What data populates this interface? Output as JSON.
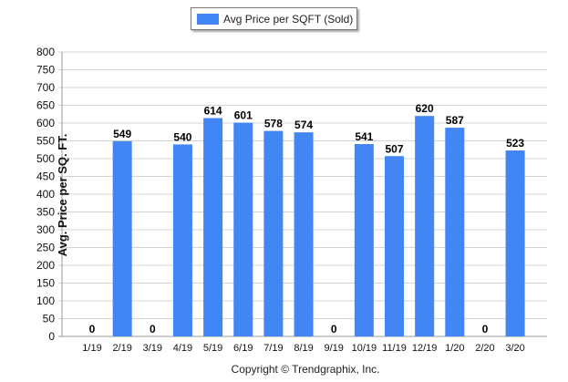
{
  "legend": {
    "label": "Avg Price per SQFT (Sold)"
  },
  "footer": {
    "text": "Copyright © Trendgraphix, Inc."
  },
  "colors": {
    "bar": "#4285f4",
    "grid": "#d4d4d4",
    "axis": "#9a9a9a"
  },
  "chart_data": {
    "type": "bar",
    "title": "",
    "xlabel": "",
    "ylabel": "Avg. Price per SQ. FT.",
    "ylim": [
      0,
      800
    ],
    "ytick_step": 50,
    "grid": true,
    "legend_position": "top-center",
    "categories": [
      "1/19",
      "2/19",
      "3/19",
      "4/19",
      "5/19",
      "6/19",
      "7/19",
      "8/19",
      "9/19",
      "10/19",
      "11/19",
      "12/19",
      "1/20",
      "2/20",
      "3/20"
    ],
    "series": [
      {
        "name": "Avg Price per SQFT (Sold)",
        "values": [
          0,
          549,
          0,
          540,
          614,
          601,
          578,
          574,
          0,
          541,
          507,
          620,
          587,
          0,
          523
        ]
      }
    ]
  }
}
